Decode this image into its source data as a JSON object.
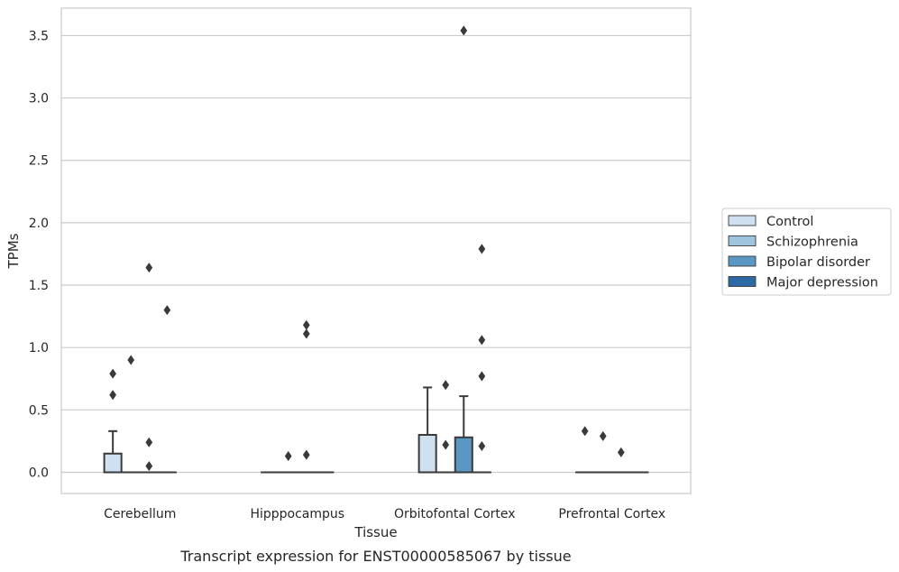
{
  "chart_data": {
    "type": "box",
    "caption": "Transcript expression for ENST00000585067 by tissue",
    "xlabel": "Tissue",
    "ylabel": "TPMs",
    "ylim": [
      -0.17,
      3.72
    ],
    "yticks": [
      0.0,
      0.5,
      1.0,
      1.5,
      2.0,
      2.5,
      3.0,
      3.5
    ],
    "ytick_labels": [
      "0.0",
      "0.5",
      "1.0",
      "1.5",
      "2.0",
      "2.5",
      "3.0",
      "3.5"
    ],
    "grid": "horizontal",
    "legend_position": "right",
    "categories": [
      "Cerebellum",
      "Hipppocampus",
      "Orbitofontal Cortex",
      "Prefrontal Cortex"
    ],
    "series": [
      {
        "name": "Control",
        "color": "#cfe0f1",
        "boxes": [
          {
            "q1": 0.0,
            "median": 0.0,
            "q3": 0.15,
            "whisker_low": 0.0,
            "whisker_high": 0.33,
            "outliers": [
              0.62,
              0.79
            ]
          },
          {
            "q1": 0.0,
            "median": 0.0,
            "q3": 0.0,
            "whisker_low": 0.0,
            "whisker_high": 0.0,
            "outliers": []
          },
          {
            "q1": 0.0,
            "median": 0.0,
            "q3": 0.3,
            "whisker_low": 0.0,
            "whisker_high": 0.68,
            "outliers": []
          },
          {
            "q1": 0.0,
            "median": 0.0,
            "q3": 0.0,
            "whisker_low": 0.0,
            "whisker_high": 0.0,
            "outliers": [
              0.33
            ]
          }
        ]
      },
      {
        "name": "Schizophrenia",
        "color": "#9fc4de",
        "boxes": [
          {
            "q1": 0.0,
            "median": 0.0,
            "q3": 0.0,
            "whisker_low": 0.0,
            "whisker_high": 0.0,
            "outliers": [
              0.9
            ]
          },
          {
            "q1": 0.0,
            "median": 0.0,
            "q3": 0.0,
            "whisker_low": 0.0,
            "whisker_high": 0.0,
            "outliers": [
              0.13
            ]
          },
          {
            "q1": 0.0,
            "median": 0.0,
            "q3": 0.0,
            "whisker_low": 0.0,
            "whisker_high": 0.0,
            "outliers": [
              0.22,
              0.7
            ]
          },
          {
            "q1": 0.0,
            "median": 0.0,
            "q3": 0.0,
            "whisker_low": 0.0,
            "whisker_high": 0.0,
            "outliers": [
              0.29
            ]
          }
        ]
      },
      {
        "name": "Bipolar disorder",
        "color": "#5b97c3",
        "boxes": [
          {
            "q1": 0.0,
            "median": 0.0,
            "q3": 0.0,
            "whisker_low": 0.0,
            "whisker_high": 0.0,
            "outliers": [
              0.05,
              0.24,
              1.64
            ]
          },
          {
            "q1": 0.0,
            "median": 0.0,
            "q3": 0.0,
            "whisker_low": 0.0,
            "whisker_high": 0.0,
            "outliers": [
              0.14,
              1.11,
              1.18
            ]
          },
          {
            "q1": 0.0,
            "median": 0.0,
            "q3": 0.28,
            "whisker_low": 0.0,
            "whisker_high": 0.61,
            "outliers": [
              3.54
            ]
          },
          {
            "q1": 0.0,
            "median": 0.0,
            "q3": 0.0,
            "whisker_low": 0.0,
            "whisker_high": 0.0,
            "outliers": [
              0.16
            ]
          }
        ]
      },
      {
        "name": "Major depression",
        "color": "#2d6aa5",
        "boxes": [
          {
            "q1": 0.0,
            "median": 0.0,
            "q3": 0.0,
            "whisker_low": 0.0,
            "whisker_high": 0.0,
            "outliers": [
              1.3
            ]
          },
          {
            "q1": 0.0,
            "median": 0.0,
            "q3": 0.0,
            "whisker_low": 0.0,
            "whisker_high": 0.0,
            "outliers": []
          },
          {
            "q1": 0.0,
            "median": 0.0,
            "q3": 0.0,
            "whisker_low": 0.0,
            "whisker_high": 0.0,
            "outliers": [
              0.21,
              0.77,
              1.06,
              1.79
            ]
          },
          {
            "q1": 0.0,
            "median": 0.0,
            "q3": 0.0,
            "whisker_low": 0.0,
            "whisker_high": 0.0,
            "outliers": []
          }
        ]
      }
    ],
    "style": {
      "box_edge_color": "#3a3a3a",
      "grid_color": "#cccccc",
      "frame_color": "#cccccc",
      "background": "#ffffff"
    }
  }
}
